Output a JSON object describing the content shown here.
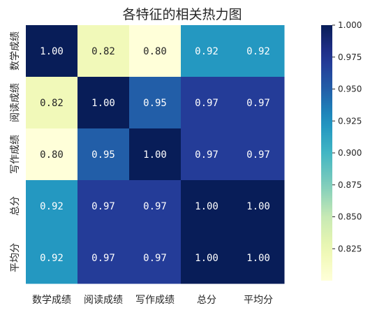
{
  "chart_data": {
    "type": "heatmap",
    "title": "各特征的相关热力图",
    "rows": [
      "数学成绩",
      "阅读成绩",
      "写作成绩",
      "总分",
      "平均分"
    ],
    "columns": [
      "数学成绩",
      "阅读成绩",
      "写作成绩",
      "总分",
      "平均分"
    ],
    "values": [
      [
        1.0,
        0.82,
        0.8,
        0.92,
        0.92
      ],
      [
        0.82,
        1.0,
        0.95,
        0.97,
        0.97
      ],
      [
        0.8,
        0.95,
        1.0,
        0.97,
        0.97
      ],
      [
        0.92,
        0.97,
        0.97,
        1.0,
        1.0
      ],
      [
        0.92,
        0.97,
        0.97,
        1.0,
        1.0
      ]
    ],
    "value_format": "0.00",
    "colormap": "YlGnBu",
    "colorbar": {
      "range": [
        0.8,
        1.0
      ],
      "ticks": [
        0.825,
        0.85,
        0.875,
        0.9,
        0.925,
        0.95,
        0.975,
        1.0
      ],
      "tick_labels": [
        "0.825",
        "0.850",
        "0.875",
        "0.900",
        "0.925",
        "0.950",
        "0.975",
        "1.000"
      ]
    }
  }
}
